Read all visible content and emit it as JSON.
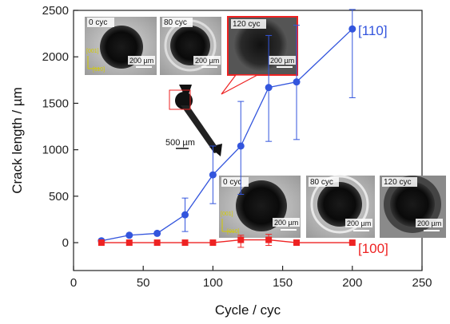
{
  "chart_data": {
    "type": "line",
    "xlabel": "Cycle / cyc",
    "ylabel": "Crack length / µm",
    "xlim": [
      0,
      250
    ],
    "ylim": [
      -300,
      2500
    ],
    "xticks": [
      0,
      50,
      100,
      150,
      200,
      250
    ],
    "yticks": [
      0,
      500,
      1000,
      1500,
      2000,
      2500
    ],
    "grid": false,
    "series": [
      {
        "name": "[110]",
        "color": "#3355dd",
        "marker": "circle",
        "x": [
          20,
          40,
          60,
          80,
          100,
          120,
          140,
          160,
          200
        ],
        "y": [
          20,
          80,
          100,
          300,
          730,
          1040,
          1670,
          1730,
          2300
        ],
        "err_low": [
          0,
          0,
          0,
          180,
          310,
          520,
          580,
          620,
          740
        ],
        "err_high": [
          0,
          0,
          0,
          180,
          310,
          480,
          560,
          610,
          210
        ]
      },
      {
        "name": "[100]",
        "color": "#ee2222",
        "marker": "square",
        "x": [
          20,
          40,
          60,
          80,
          100,
          120,
          140,
          160,
          200
        ],
        "y": [
          0,
          0,
          0,
          0,
          0,
          30,
          30,
          0,
          0
        ],
        "err_low": [
          0,
          0,
          0,
          0,
          0,
          80,
          60,
          0,
          0
        ],
        "err_high": [
          0,
          0,
          0,
          0,
          0,
          50,
          60,
          0,
          0
        ]
      }
    ],
    "annotations": {
      "top_photos": [
        {
          "label": "0 cyc",
          "scale": "200 µm"
        },
        {
          "label": "80 cyc",
          "scale": "200 µm"
        },
        {
          "label": "120 cyc",
          "scale": "200 µm"
        }
      ],
      "bottom_photos": [
        {
          "label": "0 cyc",
          "scale": "200 µm"
        },
        {
          "label": "80 cyc",
          "scale": "200 µm"
        },
        {
          "label": "120 cyc",
          "scale": "200 µm"
        }
      ],
      "top_directions": [
        "[001]",
        "[110]"
      ],
      "bottom_directions": [
        "[001]",
        "[010]"
      ],
      "specimen_scale": "500 µm"
    }
  }
}
